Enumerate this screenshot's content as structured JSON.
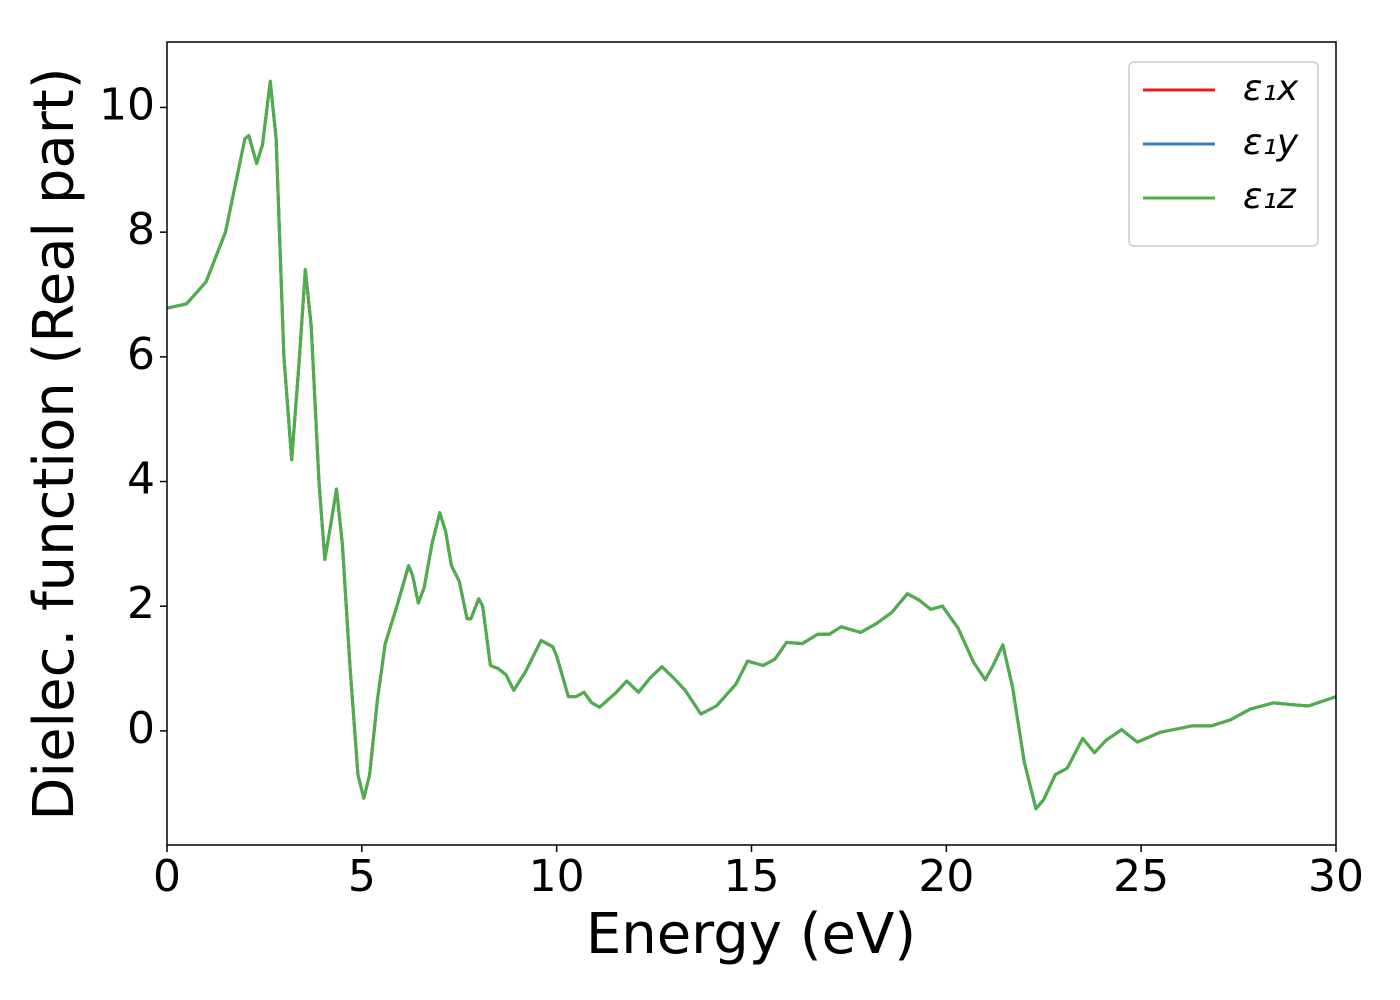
{
  "chart_data": {
    "type": "line",
    "x_label": "Energy (eV)",
    "y_label": "Dielec. function (Real part)",
    "x": [
      0,
      0.5,
      1.0,
      1.5,
      2.0,
      2.1,
      2.3,
      2.45,
      2.65,
      2.8,
      3.0,
      3.2,
      3.4,
      3.55,
      3.7,
      3.9,
      4.05,
      4.2,
      4.35,
      4.5,
      4.7,
      4.9,
      5.05,
      5.2,
      5.4,
      5.6,
      5.9,
      6.2,
      6.3,
      6.45,
      6.6,
      6.8,
      7.0,
      7.15,
      7.3,
      7.5,
      7.7,
      7.8,
      8.0,
      8.1,
      8.3,
      8.5,
      8.7,
      8.9,
      9.2,
      9.6,
      9.9,
      10.0,
      10.3,
      10.5,
      10.7,
      10.9,
      11.1,
      11.5,
      11.8,
      12.1,
      12.4,
      12.7,
      13.0,
      13.3,
      13.7,
      14.1,
      14.6,
      14.9,
      15.3,
      15.6,
      15.9,
      16.3,
      16.7,
      17.0,
      17.3,
      17.8,
      18.2,
      18.6,
      19.0,
      19.3,
      19.6,
      19.9,
      20.3,
      20.7,
      21.0,
      21.2,
      21.45,
      21.7,
      22.0,
      22.3,
      22.5,
      22.8,
      23.1,
      23.5,
      23.8,
      24.1,
      24.5,
      24.9,
      25.5,
      26.3,
      26.8,
      27.3,
      27.8,
      28.4,
      28.9,
      29.3,
      30
    ],
    "series": [
      {
        "name": "ε₁x",
        "color": "#e41a1c",
        "values": [
          6.78,
          6.85,
          7.2,
          8.0,
          9.5,
          9.55,
          9.1,
          9.4,
          10.42,
          9.5,
          6.0,
          4.35,
          6.0,
          7.4,
          6.5,
          4.0,
          2.75,
          3.3,
          3.88,
          3.0,
          1.0,
          -0.7,
          -1.08,
          -0.7,
          0.5,
          1.4,
          2.0,
          2.65,
          2.5,
          2.05,
          2.3,
          3.0,
          3.5,
          3.2,
          2.65,
          2.4,
          1.8,
          1.8,
          2.12,
          2.0,
          1.05,
          1.0,
          0.9,
          0.65,
          0.95,
          1.45,
          1.35,
          1.2,
          0.55,
          0.55,
          0.62,
          0.45,
          0.38,
          0.6,
          0.8,
          0.62,
          0.85,
          1.03,
          0.85,
          0.65,
          0.27,
          0.4,
          0.75,
          1.12,
          1.05,
          1.15,
          1.42,
          1.4,
          1.55,
          1.55,
          1.67,
          1.58,
          1.72,
          1.9,
          2.2,
          2.1,
          1.95,
          2.0,
          1.65,
          1.1,
          0.82,
          1.05,
          1.38,
          0.7,
          -0.5,
          -1.25,
          -1.1,
          -0.7,
          -0.6,
          -0.12,
          -0.35,
          -0.15,
          0.02,
          -0.18,
          -0.02,
          0.08,
          0.08,
          0.18,
          0.35,
          0.45,
          0.42,
          0.4,
          0.55
        ]
      },
      {
        "name": "ε₁y",
        "color": "#377eb8",
        "values": [
          6.78,
          6.85,
          7.2,
          8.0,
          9.5,
          9.55,
          9.1,
          9.4,
          10.42,
          9.5,
          6.0,
          4.35,
          6.0,
          7.4,
          6.5,
          4.0,
          2.75,
          3.3,
          3.88,
          3.0,
          1.0,
          -0.7,
          -1.08,
          -0.7,
          0.5,
          1.4,
          2.0,
          2.65,
          2.5,
          2.05,
          2.3,
          3.0,
          3.5,
          3.2,
          2.65,
          2.4,
          1.8,
          1.8,
          2.12,
          2.0,
          1.05,
          1.0,
          0.9,
          0.65,
          0.95,
          1.45,
          1.35,
          1.2,
          0.55,
          0.55,
          0.62,
          0.45,
          0.38,
          0.6,
          0.8,
          0.62,
          0.85,
          1.03,
          0.85,
          0.65,
          0.27,
          0.4,
          0.75,
          1.12,
          1.05,
          1.15,
          1.42,
          1.4,
          1.55,
          1.55,
          1.67,
          1.58,
          1.72,
          1.9,
          2.2,
          2.1,
          1.95,
          2.0,
          1.65,
          1.1,
          0.82,
          1.05,
          1.38,
          0.7,
          -0.5,
          -1.25,
          -1.1,
          -0.7,
          -0.6,
          -0.12,
          -0.35,
          -0.15,
          0.02,
          -0.18,
          -0.02,
          0.08,
          0.08,
          0.18,
          0.35,
          0.45,
          0.42,
          0.4,
          0.55
        ]
      },
      {
        "name": "ε₁z",
        "color": "#4daf4a",
        "values": [
          6.78,
          6.85,
          7.2,
          8.0,
          9.5,
          9.55,
          9.1,
          9.4,
          10.42,
          9.5,
          6.0,
          4.35,
          6.0,
          7.4,
          6.5,
          4.0,
          2.75,
          3.3,
          3.88,
          3.0,
          1.0,
          -0.7,
          -1.08,
          -0.7,
          0.5,
          1.4,
          2.0,
          2.65,
          2.5,
          2.05,
          2.3,
          3.0,
          3.5,
          3.2,
          2.65,
          2.4,
          1.8,
          1.8,
          2.12,
          2.0,
          1.05,
          1.0,
          0.9,
          0.65,
          0.95,
          1.45,
          1.35,
          1.2,
          0.55,
          0.55,
          0.62,
          0.45,
          0.38,
          0.6,
          0.8,
          0.62,
          0.85,
          1.03,
          0.85,
          0.65,
          0.27,
          0.4,
          0.75,
          1.12,
          1.05,
          1.15,
          1.42,
          1.4,
          1.55,
          1.55,
          1.67,
          1.58,
          1.72,
          1.9,
          2.2,
          2.1,
          1.95,
          2.0,
          1.65,
          1.1,
          0.82,
          1.05,
          1.38,
          0.7,
          -0.5,
          -1.25,
          -1.1,
          -0.7,
          -0.6,
          -0.12,
          -0.35,
          -0.15,
          0.02,
          -0.18,
          -0.02,
          0.08,
          0.08,
          0.18,
          0.35,
          0.45,
          0.42,
          0.4,
          0.55
        ]
      }
    ],
    "xlim": [
      0,
      30
    ],
    "xticks": [
      0,
      5,
      10,
      15,
      20,
      25,
      30
    ],
    "ylim": [
      -1.83,
      11.05
    ],
    "yticks": [
      0,
      2,
      4,
      6,
      8,
      10
    ],
    "grid": false,
    "legend": "upper right"
  }
}
